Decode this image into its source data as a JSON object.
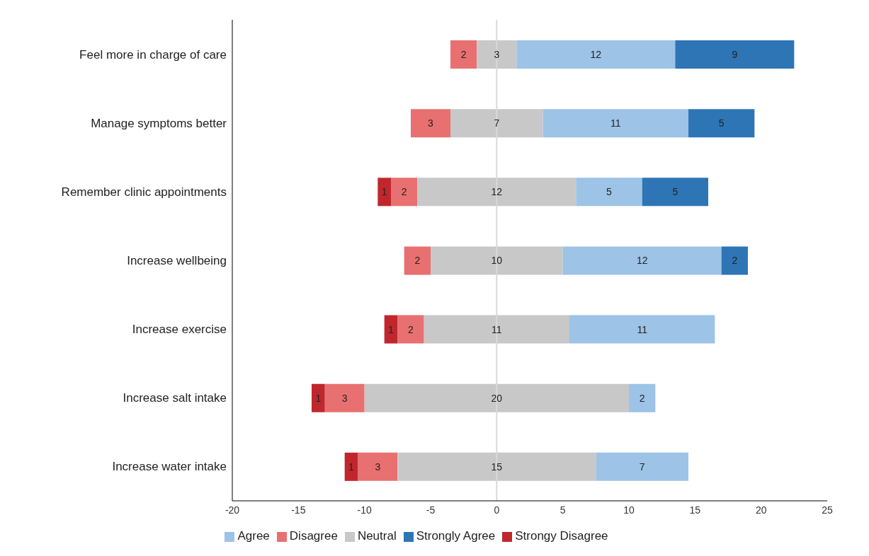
{
  "chart_data": {
    "type": "bar",
    "orientation": "horizontal",
    "categories": [
      "Feel more in charge of care",
      "Manage symptoms better",
      "Remember clinic appointments",
      "Increase wellbeing",
      "Increase exercise",
      "Increase salt intake",
      "Increase water intake"
    ],
    "series": [
      {
        "name": "Disagree",
        "color": "#e87070",
        "values": [
          2,
          3,
          2,
          2,
          2,
          3,
          3
        ],
        "base": [
          -3.5,
          -6.5,
          -8,
          -7,
          -7.5,
          -13,
          -10.5
        ]
      },
      {
        "name": "Strongy Disagree",
        "color": "#c0272d",
        "values": [
          null,
          null,
          1,
          null,
          1,
          1,
          1
        ],
        "base": [
          null,
          null,
          -9,
          null,
          -8.5,
          -14,
          -11.5
        ]
      },
      {
        "name": "Neutral",
        "color": "#c8c8c8",
        "values": [
          3,
          7,
          12,
          10,
          11,
          20,
          15
        ],
        "base": [
          -1.5,
          -3.5,
          -6,
          -5,
          -5.5,
          -10,
          -7.5
        ]
      },
      {
        "name": "Agree",
        "color": "#9dc3e6",
        "values": [
          12,
          11,
          5,
          12,
          11,
          2,
          7
        ],
        "base": [
          1.5,
          3.5,
          6,
          5,
          5.5,
          10,
          7.5
        ]
      },
      {
        "name": "Strongly Agree",
        "color": "#2e75b6",
        "values": [
          9,
          5,
          5,
          2,
          null,
          null,
          null
        ],
        "base": [
          13.5,
          14.5,
          11,
          17,
          null,
          null,
          null
        ]
      }
    ],
    "xlim": [
      -20,
      25
    ],
    "xticks": [
      -20,
      -15,
      -10,
      -5,
      0,
      5,
      10,
      15,
      20,
      25
    ],
    "ref_lines": [
      {
        "axis": "x",
        "value": 0,
        "color": "#d9d9d9"
      }
    ],
    "data_labels": true,
    "legend": "bottom"
  }
}
